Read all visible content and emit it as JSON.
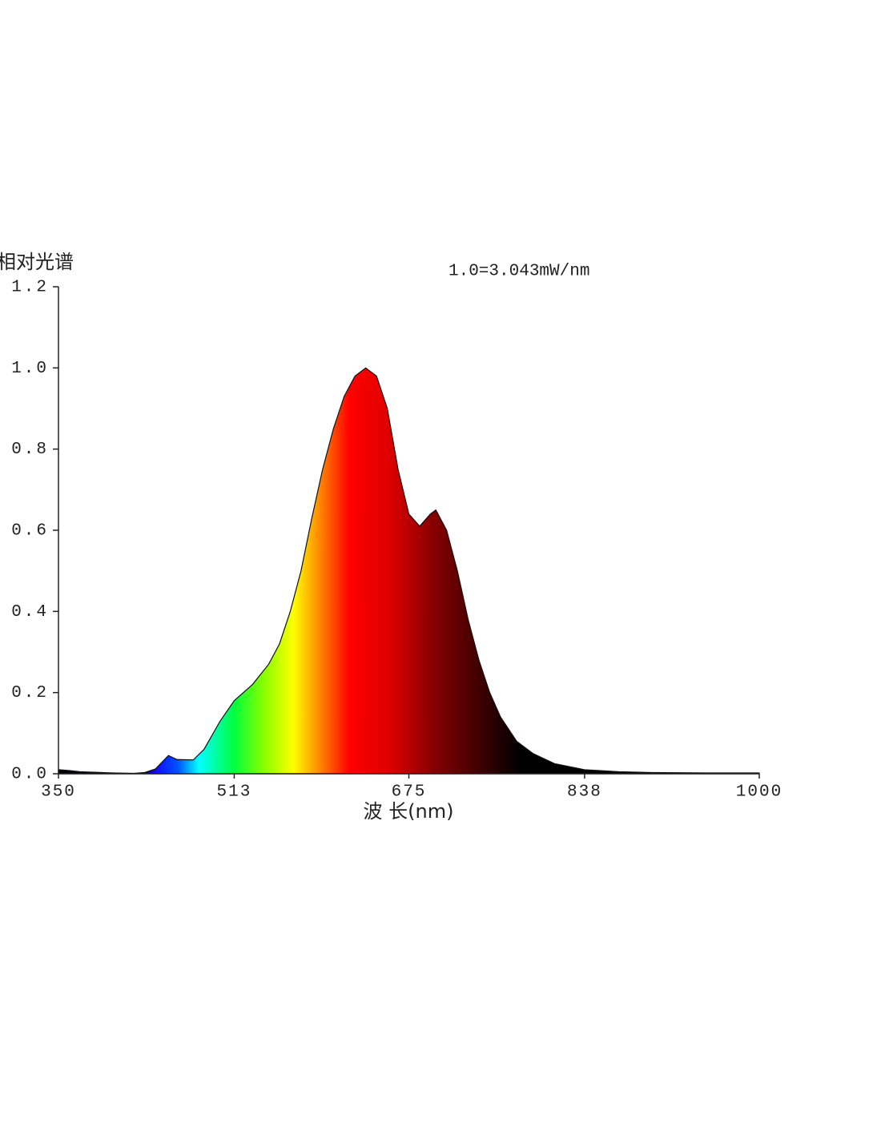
{
  "chart_data": {
    "type": "area",
    "y_label": "相对光谱",
    "annotation": "1.0=3.043mW/nm",
    "x_label": "波 长(nm)",
    "xlim": [
      350,
      1000
    ],
    "xticks": [
      350,
      513,
      675,
      838,
      1000
    ],
    "ylim": [
      0,
      1.2
    ],
    "yticks": [
      {
        "value": 0,
        "label": "0.0"
      },
      0.2,
      0.4,
      0.6,
      0.8,
      {
        "value": 1,
        "label": "1.0"
      },
      1.2
    ],
    "series": [
      {
        "x": [
          350,
          360,
          370,
          380,
          400,
          420,
          430,
          440,
          452,
          460,
          475,
          485,
          500,
          513,
          530,
          545,
          555,
          565,
          575,
          585,
          595,
          605,
          615,
          625,
          635,
          645,
          655,
          665,
          675,
          685,
          695,
          700,
          710,
          720,
          730,
          740,
          750,
          760,
          775,
          790,
          810,
          838,
          870,
          900,
          950,
          1000
        ],
        "values": [
          0.01,
          0.008,
          0.005,
          0.004,
          0.002,
          0.001,
          0.003,
          0.012,
          0.045,
          0.035,
          0.034,
          0.06,
          0.13,
          0.18,
          0.22,
          0.27,
          0.32,
          0.4,
          0.5,
          0.63,
          0.75,
          0.85,
          0.93,
          0.98,
          1.0,
          0.98,
          0.9,
          0.75,
          0.64,
          0.61,
          0.64,
          0.65,
          0.6,
          0.5,
          0.38,
          0.28,
          0.2,
          0.14,
          0.08,
          0.05,
          0.025,
          0.01,
          0.005,
          0.003,
          0.002,
          0.002
        ]
      }
    ]
  }
}
